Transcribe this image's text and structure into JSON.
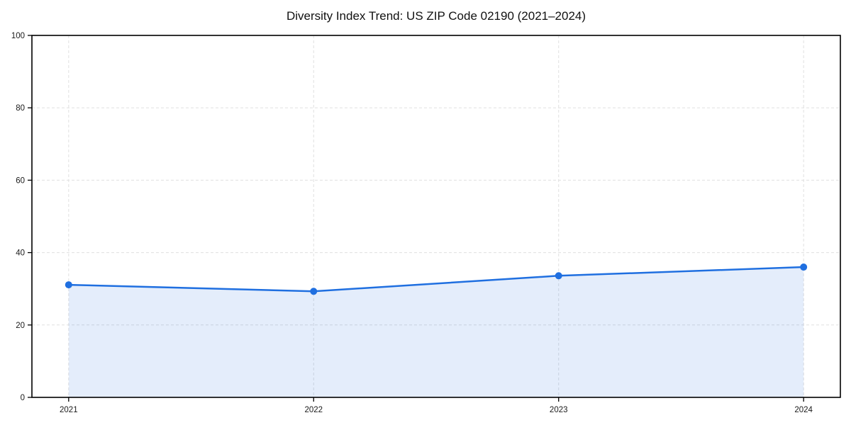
{
  "chart_data": {
    "type": "area",
    "title": "Diversity Index Trend: US ZIP Code 02190 (2021–2024)",
    "categories": [
      "2021",
      "2022",
      "2023",
      "2024"
    ],
    "series": [
      {
        "name": "Diversity Index",
        "values": [
          31.1,
          29.3,
          33.6,
          36.0
        ]
      }
    ],
    "xlabel": "",
    "ylabel": "",
    "ylim": [
      0,
      100
    ],
    "yticks": [
      0,
      20,
      40,
      60,
      80,
      100
    ],
    "grid": true,
    "grid_style": "dashed",
    "legend": "none",
    "colors": {
      "line": "#1f6fe0",
      "marker": "#1f6fe0",
      "fill": "#1f6fe0",
      "fill_opacity": 0.12,
      "grid": "#e0e0e0",
      "spine": "#000000",
      "tick_label": "#1a1a1a",
      "title": "#111111"
    }
  }
}
